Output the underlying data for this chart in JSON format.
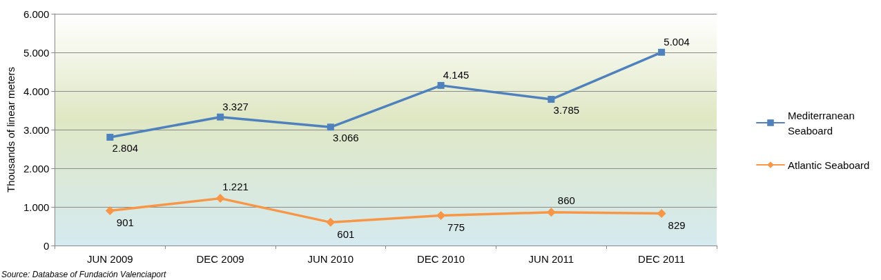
{
  "chart_data": {
    "type": "line",
    "ylabel": "Thousands of linear meters",
    "categories": [
      "JUN 2009",
      "DEC 2009",
      "JUN 2010",
      "DEC 2010",
      "JUN 2011",
      "DEC 2011"
    ],
    "series": [
      {
        "name": "Mediterranean Seaboard",
        "color": "#4f81bd",
        "marker": "square",
        "values": [
          2804,
          3327,
          3066,
          4145,
          3785,
          5004
        ],
        "value_labels": [
          "2.804",
          "3.327",
          "3.066",
          "4.145",
          "3.785",
          "5.004"
        ]
      },
      {
        "name": "Atlantic Seaboard",
        "color": "#f79646",
        "marker": "diamond",
        "values": [
          901,
          1221,
          601,
          775,
          860,
          829
        ],
        "value_labels": [
          "901",
          "1.221",
          "601",
          "775",
          "860",
          "829"
        ]
      }
    ],
    "ylim": [
      0,
      6000
    ],
    "yticks": [
      {
        "value": 0,
        "label": "0"
      },
      {
        "value": 1000,
        "label": "1.000"
      },
      {
        "value": 2000,
        "label": "2.000"
      },
      {
        "value": 3000,
        "label": "3.000"
      },
      {
        "value": 4000,
        "label": "4.000"
      },
      {
        "value": 5000,
        "label": "5.000"
      },
      {
        "value": 6000,
        "label": "6.000"
      }
    ],
    "grid": "y",
    "legend": "right",
    "line_style": "solid",
    "annotations": [
      "Source: Database of Fundación Valenciaport"
    ]
  }
}
